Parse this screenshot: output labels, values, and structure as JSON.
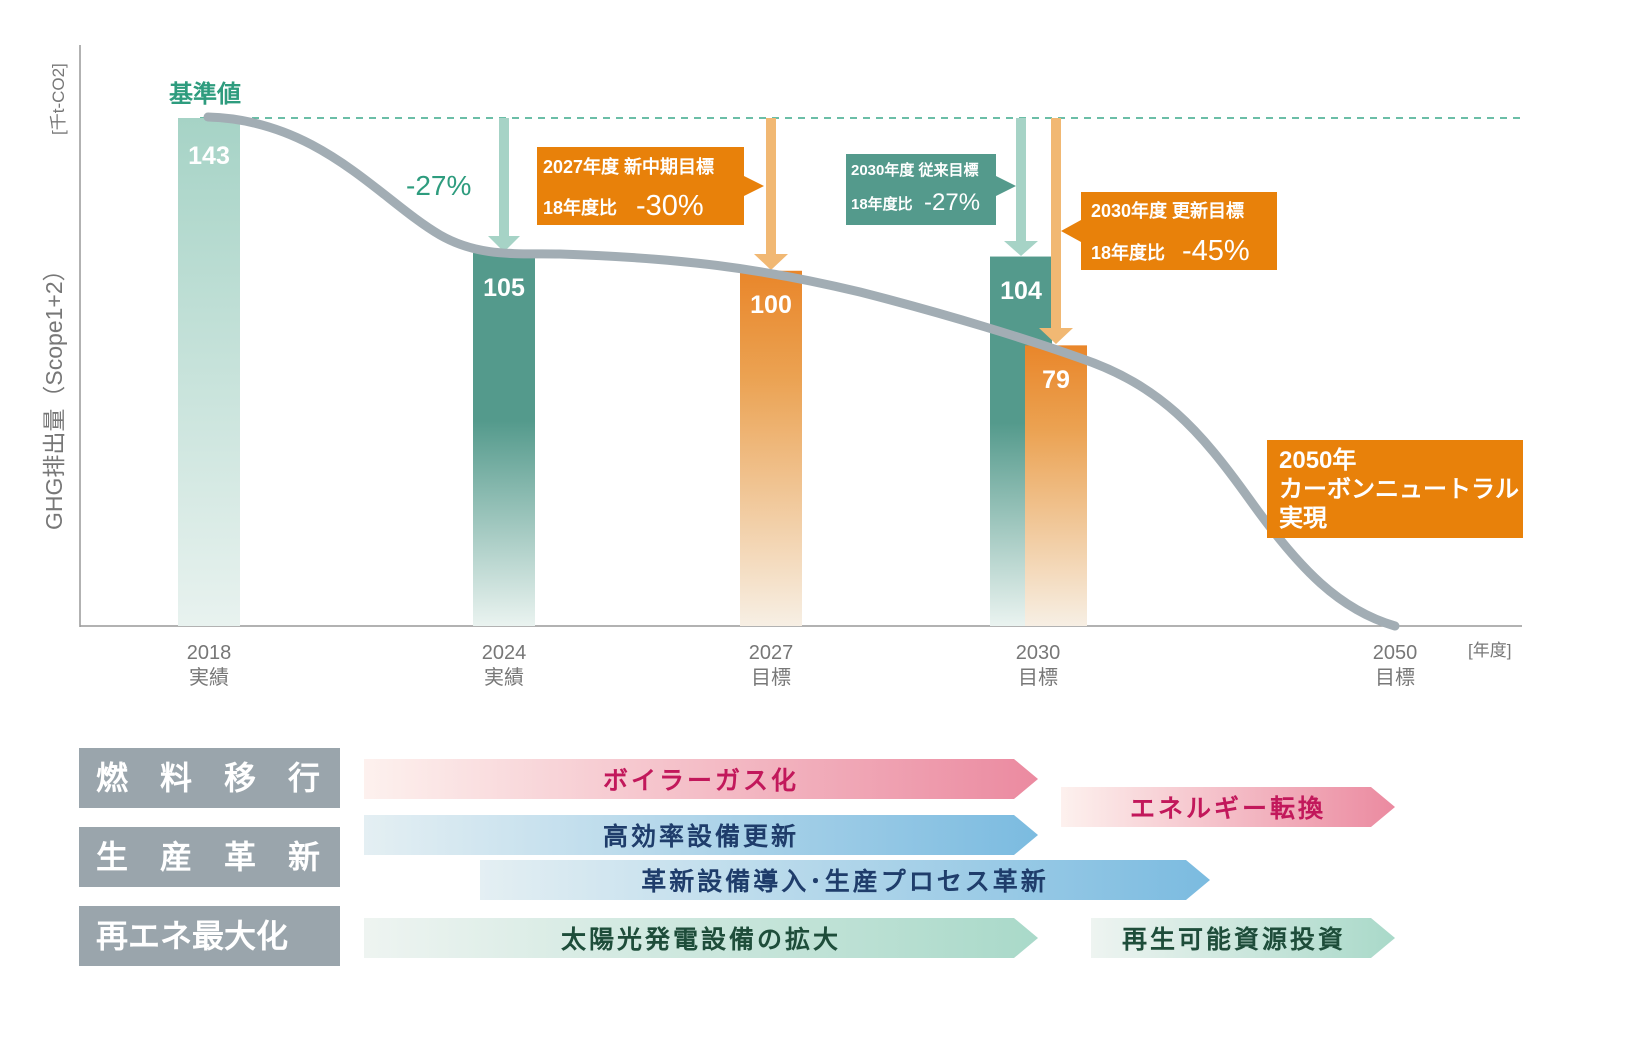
{
  "chart_data": {
    "type": "bar",
    "ylabel": "GHG排出量（Scope1+2）",
    "yunit": "[千t-CO2]",
    "xunit": "[年度]",
    "ylim": [
      0,
      143
    ],
    "grid": false,
    "baseline_label": "基準値",
    "categories": [
      {
        "year": "2018",
        "sub": "実績"
      },
      {
        "year": "2024",
        "sub": "実績"
      },
      {
        "year": "2027",
        "sub": "目標"
      },
      {
        "year": "2030",
        "sub": "目標"
      },
      {
        "year": "2050",
        "sub": "目標"
      }
    ],
    "bars": [
      {
        "category": "2018",
        "value": 143,
        "label": "143",
        "color": "#a6d3c6"
      },
      {
        "category": "2024",
        "value": 105,
        "label": "105",
        "color": "#549a8c"
      },
      {
        "category": "2027",
        "value": 100,
        "label": "100",
        "color": "#e9862a"
      },
      {
        "category": "2030",
        "value": 104,
        "label": "104",
        "color": "#549a8c"
      },
      {
        "category": "2030",
        "value": 79,
        "label": "79",
        "color": "#e9862a"
      }
    ],
    "annotations": {
      "reduction_2024": "-27%",
      "target_2027": {
        "line1": "2027年度 新中期目標",
        "line2_prefix": "18年度比",
        "line2_value": "-30%"
      },
      "target_2030_old": {
        "line1": "2030年度 従来目標",
        "line2_prefix": "18年度比",
        "line2_value": "-27%"
      },
      "target_2030_new": {
        "line1": "2030年度 更新目標",
        "line2_prefix": "18年度比",
        "line2_value": "-45%"
      },
      "goal_2050": [
        "2050年",
        "カーボンニュートラル",
        "実現"
      ]
    },
    "colors": {
      "teal": "#2e9c7e",
      "green": "#549a8c",
      "orange": "#e8810a",
      "curve": "#a2adb4",
      "category_bg": "#9aa5ac"
    }
  },
  "roadmap": {
    "categories": [
      "燃　料　移　行",
      "生　産　革　新",
      "再エネ最大化"
    ],
    "arrows": [
      "ボイラーガス化",
      "エネルギー転換",
      "高効率設備更新",
      "革新設備導入･生産プロセス革新",
      "太陽光発電設備の拡大",
      "再生可能資源投資"
    ]
  }
}
